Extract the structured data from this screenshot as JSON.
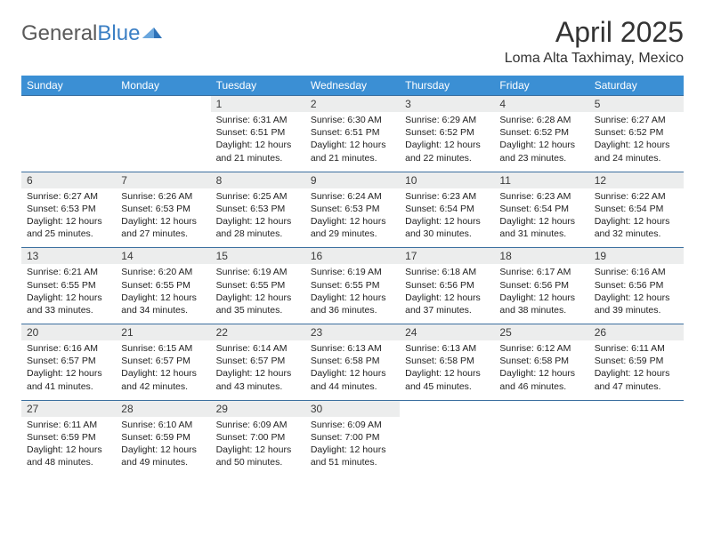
{
  "brand": {
    "part1": "General",
    "part2": "Blue"
  },
  "title": "April 2025",
  "location": "Loma Alta Taxhimay, Mexico",
  "colors": {
    "header_bg": "#3b8fd4",
    "header_text": "#ffffff",
    "daynum_bg": "#eceded",
    "rule": "#3b6f9f",
    "text": "#222222",
    "logo_gray": "#5a5a5a",
    "logo_blue": "#3b7fc4"
  },
  "fonts": {
    "title_size": 32,
    "location_size": 16,
    "header_size": 12,
    "body_size": 10.5
  },
  "day_headers": [
    "Sunday",
    "Monday",
    "Tuesday",
    "Wednesday",
    "Thursday",
    "Friday",
    "Saturday"
  ],
  "weeks": [
    [
      null,
      null,
      {
        "n": "1",
        "sr": "6:31 AM",
        "ss": "6:51 PM",
        "dl": "12 hours and 21 minutes."
      },
      {
        "n": "2",
        "sr": "6:30 AM",
        "ss": "6:51 PM",
        "dl": "12 hours and 21 minutes."
      },
      {
        "n": "3",
        "sr": "6:29 AM",
        "ss": "6:52 PM",
        "dl": "12 hours and 22 minutes."
      },
      {
        "n": "4",
        "sr": "6:28 AM",
        "ss": "6:52 PM",
        "dl": "12 hours and 23 minutes."
      },
      {
        "n": "5",
        "sr": "6:27 AM",
        "ss": "6:52 PM",
        "dl": "12 hours and 24 minutes."
      }
    ],
    [
      {
        "n": "6",
        "sr": "6:27 AM",
        "ss": "6:53 PM",
        "dl": "12 hours and 25 minutes."
      },
      {
        "n": "7",
        "sr": "6:26 AM",
        "ss": "6:53 PM",
        "dl": "12 hours and 27 minutes."
      },
      {
        "n": "8",
        "sr": "6:25 AM",
        "ss": "6:53 PM",
        "dl": "12 hours and 28 minutes."
      },
      {
        "n": "9",
        "sr": "6:24 AM",
        "ss": "6:53 PM",
        "dl": "12 hours and 29 minutes."
      },
      {
        "n": "10",
        "sr": "6:23 AM",
        "ss": "6:54 PM",
        "dl": "12 hours and 30 minutes."
      },
      {
        "n": "11",
        "sr": "6:23 AM",
        "ss": "6:54 PM",
        "dl": "12 hours and 31 minutes."
      },
      {
        "n": "12",
        "sr": "6:22 AM",
        "ss": "6:54 PM",
        "dl": "12 hours and 32 minutes."
      }
    ],
    [
      {
        "n": "13",
        "sr": "6:21 AM",
        "ss": "6:55 PM",
        "dl": "12 hours and 33 minutes."
      },
      {
        "n": "14",
        "sr": "6:20 AM",
        "ss": "6:55 PM",
        "dl": "12 hours and 34 minutes."
      },
      {
        "n": "15",
        "sr": "6:19 AM",
        "ss": "6:55 PM",
        "dl": "12 hours and 35 minutes."
      },
      {
        "n": "16",
        "sr": "6:19 AM",
        "ss": "6:55 PM",
        "dl": "12 hours and 36 minutes."
      },
      {
        "n": "17",
        "sr": "6:18 AM",
        "ss": "6:56 PM",
        "dl": "12 hours and 37 minutes."
      },
      {
        "n": "18",
        "sr": "6:17 AM",
        "ss": "6:56 PM",
        "dl": "12 hours and 38 minutes."
      },
      {
        "n": "19",
        "sr": "6:16 AM",
        "ss": "6:56 PM",
        "dl": "12 hours and 39 minutes."
      }
    ],
    [
      {
        "n": "20",
        "sr": "6:16 AM",
        "ss": "6:57 PM",
        "dl": "12 hours and 41 minutes."
      },
      {
        "n": "21",
        "sr": "6:15 AM",
        "ss": "6:57 PM",
        "dl": "12 hours and 42 minutes."
      },
      {
        "n": "22",
        "sr": "6:14 AM",
        "ss": "6:57 PM",
        "dl": "12 hours and 43 minutes."
      },
      {
        "n": "23",
        "sr": "6:13 AM",
        "ss": "6:58 PM",
        "dl": "12 hours and 44 minutes."
      },
      {
        "n": "24",
        "sr": "6:13 AM",
        "ss": "6:58 PM",
        "dl": "12 hours and 45 minutes."
      },
      {
        "n": "25",
        "sr": "6:12 AM",
        "ss": "6:58 PM",
        "dl": "12 hours and 46 minutes."
      },
      {
        "n": "26",
        "sr": "6:11 AM",
        "ss": "6:59 PM",
        "dl": "12 hours and 47 minutes."
      }
    ],
    [
      {
        "n": "27",
        "sr": "6:11 AM",
        "ss": "6:59 PM",
        "dl": "12 hours and 48 minutes."
      },
      {
        "n": "28",
        "sr": "6:10 AM",
        "ss": "6:59 PM",
        "dl": "12 hours and 49 minutes."
      },
      {
        "n": "29",
        "sr": "6:09 AM",
        "ss": "7:00 PM",
        "dl": "12 hours and 50 minutes."
      },
      {
        "n": "30",
        "sr": "6:09 AM",
        "ss": "7:00 PM",
        "dl": "12 hours and 51 minutes."
      },
      null,
      null,
      null
    ]
  ],
  "labels": {
    "sunrise": "Sunrise:",
    "sunset": "Sunset:",
    "daylight": "Daylight:"
  }
}
